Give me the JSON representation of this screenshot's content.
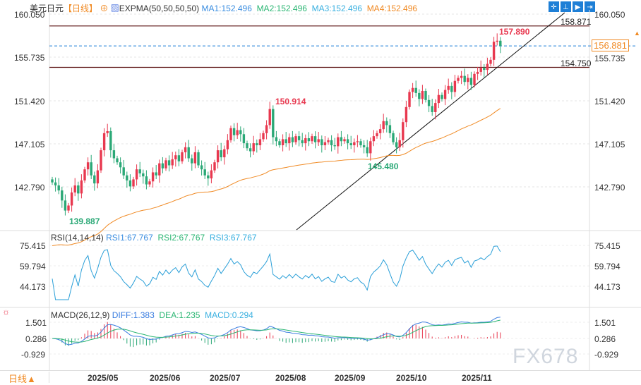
{
  "header": {
    "symbol": "美元日元",
    "period": "【日线】",
    "indicator": "EXPMA(50,50,50,50)",
    "ma1": "MA1:152.496",
    "ma2": "MA2:152.496",
    "ma3": "MA3:152.496",
    "ma4": "MA4:152.496"
  },
  "toolbar": [
    "crosshair",
    "range",
    "zoom",
    "goto-latest"
  ],
  "price_axis": {
    "left": [
      "160.050",
      "155.735",
      "151.420",
      "147.105",
      "142.790"
    ],
    "right": [
      "160.050",
      "155.735",
      "151.420",
      "147.105",
      "142.790"
    ],
    "current": "156.881"
  },
  "levels": {
    "resistance": "158.871",
    "support": "154.750",
    "current": 156.881
  },
  "annotations": {
    "high": "157.890",
    "low_left": "139.887",
    "peak_jul": "150.914",
    "low_sep": "145.480"
  },
  "rsi": {
    "title": "RSI(14,14,14)",
    "rsi1": "RSI1:67.767",
    "rsi2": "RSI2:67.767",
    "rsi3": "RSI3:67.767",
    "axis": [
      "75.415",
      "59.794",
      "44.173"
    ]
  },
  "macd": {
    "title": "MACD(26,12,9)",
    "diff": "DIFF:1.383",
    "dea": "DEA:1.235",
    "macd": "MACD:0.294",
    "axis": [
      "1.501",
      "0.286",
      "-0.929"
    ]
  },
  "dates": [
    "2025/05",
    "2025/06",
    "2025/07",
    "2025/08",
    "2025/09",
    "2025/10",
    "2025/11"
  ],
  "period_selector": "日线▲",
  "watermark": "FX678",
  "colors": {
    "up": "#e8384f",
    "down": "#2aa876",
    "ema": "#f08a24",
    "accent": "#1e7fd6",
    "rsi": "#2a9fd8",
    "diff": "#3a7de0",
    "dea": "#2bb673"
  },
  "chart_data": {
    "type": "candlestick",
    "closes": [
      143.3,
      143.0,
      142.5,
      141.5,
      140.5,
      141.0,
      142.3,
      143.0,
      142.2,
      143.5,
      144.6,
      145.3,
      144.0,
      143.2,
      144.5,
      146.5,
      148.2,
      148.4,
      146.5,
      145.7,
      145.3,
      144.8,
      144.0,
      143.5,
      142.9,
      143.6,
      144.6,
      144.2,
      143.9,
      143.1,
      143.4,
      144.3,
      144.0,
      145.2,
      144.7,
      145.5,
      145.0,
      145.6,
      146.0,
      145.4,
      146.3,
      146.8,
      145.7,
      145.2,
      146.3,
      145.0,
      144.6,
      144.0,
      143.7,
      144.5,
      145.3,
      146.5,
      145.8,
      146.6,
      147.5,
      148.7,
      148.0,
      148.5,
      148.1,
      147.2,
      146.7,
      146.4,
      147.2,
      147.0,
      147.6,
      148.2,
      149.0,
      150.6,
      147.8,
      147.4,
      147.0,
      147.6,
      147.2,
      147.8,
      147.3,
      147.9,
      147.5,
      147.2,
      147.7,
      147.4,
      147.9,
      147.3,
      147.6,
      147.0,
      147.3,
      147.5,
      147.0,
      146.9,
      147.8,
      147.4,
      147.6,
      147.2,
      147.0,
      147.3,
      147.4,
      147.0,
      146.8,
      146.2,
      147.4,
      147.9,
      148.2,
      148.6,
      149.4,
      149.0,
      148.2,
      147.3,
      146.8,
      147.5,
      149.3,
      150.8,
      152.3,
      152.7,
      152.2,
      151.6,
      152.4,
      151.5,
      150.9,
      150.3,
      151.2,
      152.0,
      151.6,
      152.5,
      152.9,
      152.3,
      153.4,
      153.7,
      153.9,
      153.3,
      153.7,
      153.0,
      154.1,
      154.3,
      154.7,
      154.5,
      155.1,
      155.5,
      157.3,
      157.4,
      156.9
    ],
    "ylim": [
      138.5,
      160.05
    ]
  }
}
